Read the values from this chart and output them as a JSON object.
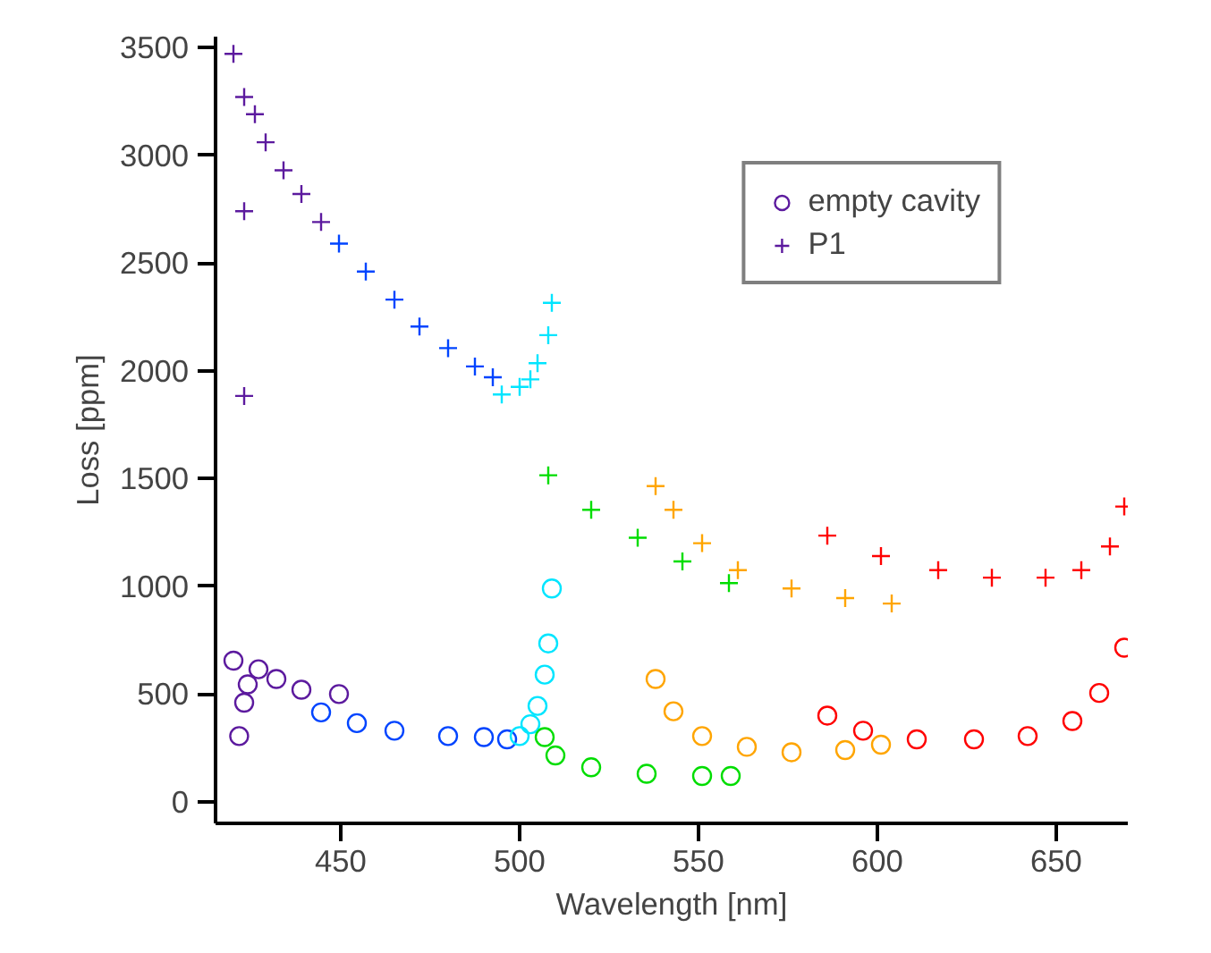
{
  "chart_data": {
    "type": "scatter",
    "xlabel": "Wavelength [nm]",
    "ylabel": "Loss [ppm]",
    "xlim": [
      415,
      670
    ],
    "ylim": [
      -100,
      3550
    ],
    "xticks": [
      450,
      500,
      550,
      600,
      650
    ],
    "yticks": [
      0,
      500,
      1000,
      1500,
      2000,
      2500,
      3000,
      3500
    ],
    "grid": false,
    "legend": "top right",
    "series": [
      {
        "name": "empty cavity",
        "marker": "circle",
        "color": "#5c1a9e",
        "x": [
          420,
          421.6,
          423,
          424,
          427,
          432,
          439,
          449.5
        ],
        "values": [
          655,
          305,
          460,
          545,
          615,
          570,
          520,
          500
        ]
      },
      {
        "name": "P1",
        "marker": "cross",
        "color": "#5c1a9e",
        "x": [
          420,
          423,
          423,
          423,
          426,
          429,
          434,
          439,
          444.5
        ],
        "values": [
          3470,
          3270,
          2740,
          1883,
          3190,
          3060,
          2930,
          2820,
          2690
        ]
      },
      {
        "marker": "circle",
        "color": "#0044ff",
        "x": [
          444.5,
          454.5,
          465,
          480,
          490,
          496.5
        ],
        "values": [
          415,
          365,
          330,
          305,
          300,
          290
        ]
      },
      {
        "marker": "cross",
        "color": "#0044ff",
        "x": [
          449.5,
          457,
          465,
          472,
          480,
          487.5,
          492.5
        ],
        "values": [
          2590,
          2460,
          2330,
          2205,
          2105,
          2020,
          1970
        ]
      },
      {
        "marker": "circle",
        "color": "#00e5ff",
        "x": [
          500,
          503,
          505,
          507,
          508,
          509
        ],
        "values": [
          305,
          360,
          445,
          590,
          735,
          990
        ]
      },
      {
        "marker": "cross",
        "color": "#00e5ff",
        "x": [
          495,
          500,
          503,
          505,
          508,
          509
        ],
        "values": [
          1890,
          1925,
          1960,
          2035,
          2165,
          2315
        ]
      },
      {
        "marker": "circle",
        "color": "#00dd00",
        "x": [
          507,
          510,
          520,
          535.5,
          551,
          559
        ],
        "values": [
          300,
          215,
          160,
          130,
          120,
          120
        ]
      },
      {
        "marker": "cross",
        "color": "#00dd00",
        "x": [
          508,
          520,
          533,
          545.5,
          558.5
        ],
        "values": [
          1515,
          1355,
          1225,
          1115,
          1015
        ]
      },
      {
        "marker": "circle",
        "color": "#ffa500",
        "x": [
          538,
          543,
          551,
          563.5,
          576,
          591,
          601
        ],
        "values": [
          570,
          420,
          305,
          255,
          230,
          240,
          265
        ]
      },
      {
        "marker": "cross",
        "color": "#ffa500",
        "x": [
          538,
          543,
          551,
          561,
          576,
          591,
          604
        ],
        "values": [
          1465,
          1355,
          1200,
          1075,
          990,
          945,
          920
        ]
      },
      {
        "marker": "circle",
        "color": "#ff0000",
        "x": [
          586,
          596,
          611,
          627,
          642,
          654.5,
          662,
          669
        ],
        "values": [
          400,
          330,
          290,
          290,
          305,
          375,
          505,
          715
        ]
      },
      {
        "marker": "cross",
        "color": "#ff0000",
        "x": [
          586,
          601,
          617,
          632,
          647,
          657,
          665,
          669
        ],
        "values": [
          1235,
          1140,
          1075,
          1040,
          1040,
          1075,
          1185,
          1370
        ]
      }
    ]
  }
}
